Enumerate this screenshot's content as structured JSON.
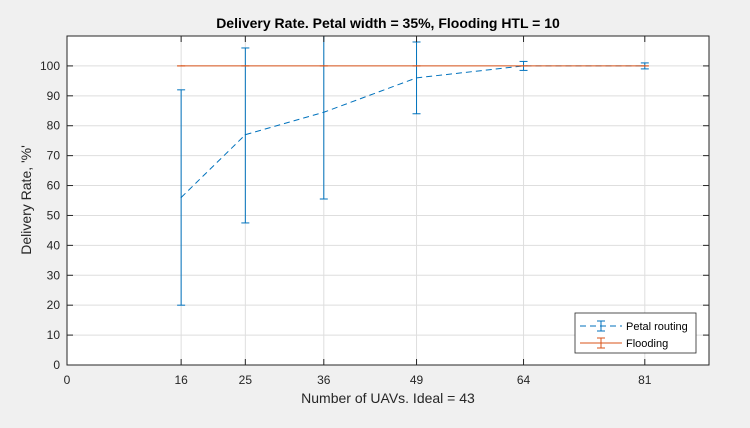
{
  "chart_data": {
    "type": "line",
    "title": "Delivery Rate. Petal width = 35%, Flooding HTL = 10",
    "xlabel": "Number of UAVs. Ideal = 43",
    "ylabel": "Delivery Rate, '%'",
    "xlim": [
      0,
      90
    ],
    "ylim": [
      0,
      110
    ],
    "x_ticks": [
      0,
      16,
      25,
      36,
      49,
      64,
      81
    ],
    "y_ticks": [
      0,
      10,
      20,
      30,
      40,
      50,
      60,
      70,
      80,
      90,
      100
    ],
    "grid": true,
    "legend_position": "bottom-right",
    "series": [
      {
        "name": "Petal routing",
        "color": "#0072BD",
        "style": "dashed",
        "x": [
          16,
          25,
          36,
          49,
          64,
          81
        ],
        "y": [
          56,
          77,
          84.5,
          96,
          100,
          100
        ],
        "err_low": [
          20,
          47.5,
          55.5,
          84,
          98.5,
          99
        ],
        "err_high": [
          92,
          106,
          112,
          108,
          101.5,
          101
        ]
      },
      {
        "name": "Flooding",
        "color": "#D95319",
        "style": "solid",
        "x": [
          16,
          25,
          36,
          49,
          64,
          81
        ],
        "y": [
          100,
          100,
          100,
          100,
          100,
          100
        ],
        "err_low": [
          100,
          100,
          100,
          100,
          100,
          100
        ],
        "err_high": [
          100,
          100,
          100,
          100,
          100,
          100
        ]
      }
    ]
  }
}
